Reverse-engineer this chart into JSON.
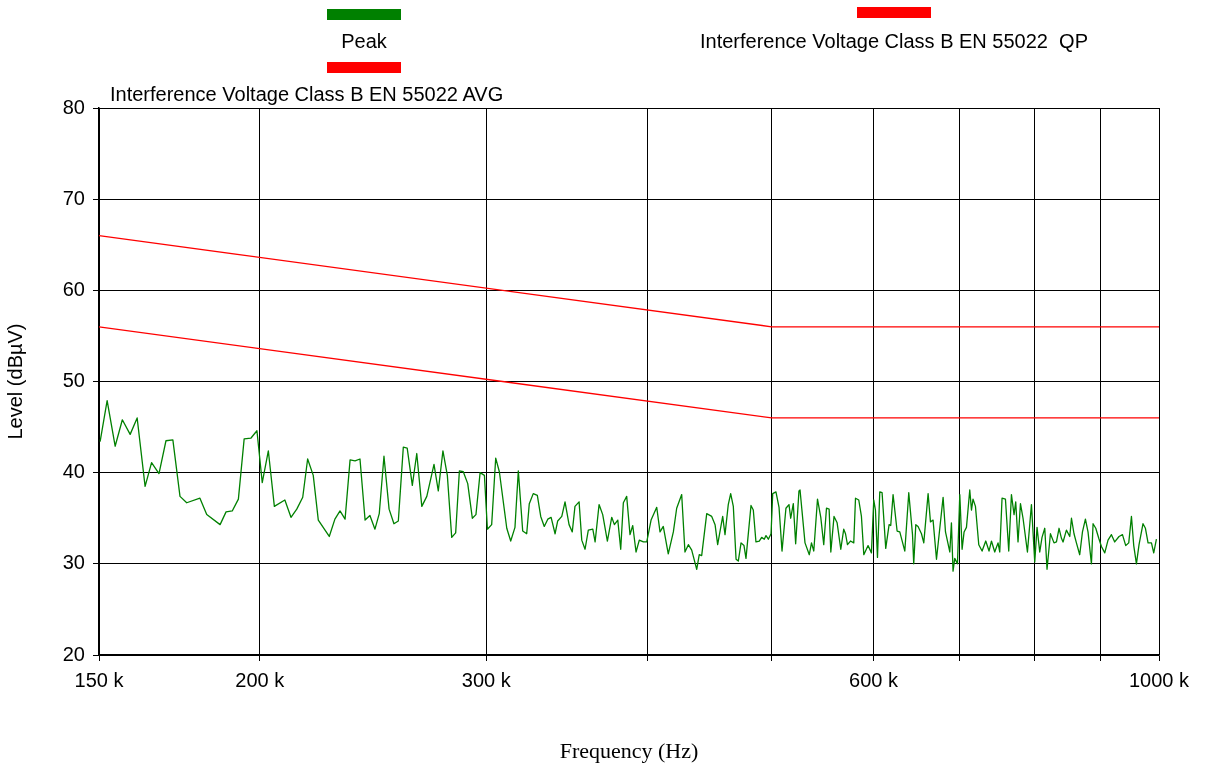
{
  "chart_data": {
    "type": "line",
    "xlabel": "Frequency (Hz)",
    "ylabel": "Level (dBµV)",
    "log": "x",
    "grid": true,
    "legend": "top",
    "marker": "none",
    "line_style": "solid",
    "xlim": [
      150000,
      1000000
    ],
    "ylim": [
      20,
      80
    ],
    "xticks": [
      {
        "value": 150000,
        "label": "150 k"
      },
      {
        "value": 200000,
        "label": "200 k"
      },
      {
        "value": 300000,
        "label": "300 k"
      },
      {
        "value": 400000,
        "label": null
      },
      {
        "value": 500000,
        "label": null
      },
      {
        "value": 600000,
        "label": "600 k"
      },
      {
        "value": 700000,
        "label": null
      },
      {
        "value": 800000,
        "label": null
      },
      {
        "value": 900000,
        "label": null
      },
      {
        "value": 1000000,
        "label": "1000 k"
      }
    ],
    "yticks": [
      20,
      30,
      40,
      50,
      60,
      70,
      80
    ],
    "series": [
      {
        "name": "Peak",
        "color": "#008000",
        "x": [
          150300,
          152200,
          154400,
          156400,
          158600,
          160600,
          162900,
          164800,
          167000,
          169100,
          171200,
          173400,
          175500,
          179700,
          181900,
          186300,
          188300,
          190400,
          192500,
          194500,
          196900,
          199000,
          200900,
          203100,
          205300,
          209200,
          211500,
          213700,
          216000,
          217900,
          220100,
          222100,
          226500,
          228800,
          230900,
          233000,
          235100,
          237200,
          239300,
          241500,
          243600,
          245800,
          247700,
          249800,
          252100,
          254300,
          256300,
          258600,
          260400,
          262800,
          264900,
          267300,
          269700,
          273200,
          275300,
          277600,
          279800,
          282000,
          284000,
          285900,
          287900,
          290200,
          292600,
          294500,
          296700,
          299000,
          300600,
          302900,
          305100,
          307100,
          311200,
          313400,
          315800,
          317700,
          320200,
          322500,
          324000,
          326300,
          328700,
          330700,
          332800,
          334900,
          336900,
          339300,
          340900,
          343400,
          345400,
          347900,
          349900,
          351600,
          354200,
          355900,
          358000,
          360100,
          363000,
          364500,
          367100,
          369500,
          372600,
          375500,
          377300,
          379600,
          381600,
          383400,
          385700,
          388000,
          389900,
          392200,
          394500,
          397400,
          399800,
          402900,
          407000,
          409400,
          411800,
          415500,
          419300,
          421800,
          425600,
          428100,
          430700,
          433300,
          437200,
          439200,
          441100,
          445100,
          449100,
          451800,
          453900,
          458000,
          459900,
          462600,
          464600,
          466800,
          469100,
          471000,
          473300,
          475800,
          477500,
          481800,
          483800,
          486100,
          489000,
          491100,
          493400,
          494900,
          497000,
          499400,
          500900,
          503800,
          506600,
          509300,
          512900,
          515700,
          517300,
          519700,
          521900,
          525000,
          526000,
          530700,
          534800,
          536900,
          539100,
          542700,
          545900,
          548800,
          551500,
          554100,
          555800,
          559000,
          562100,
          565800,
          568800,
          570600,
          572600,
          575700,
          579100,
          580900,
          584300,
          587100,
          589600,
          594100,
          597700,
          600200,
          602000,
          604200,
          606700,
          609200,
          613200,
          616900,
          618700,
          621300,
          625800,
          628800,
          634500,
          639000,
          643300,
          644700,
          647100,
          649700,
          653700,
          656400,
          661500,
          664300,
          667400,
          671500,
          679500,
          682400,
          687700,
          689700,
          691700,
          693800,
          697200,
          700100,
          703000,
          705500,
          708500,
          712700,
          714900,
          716900,
          720000,
          724300,
          728600,
          733400,
          737700,
          740900,
          745300,
          749700,
          752000,
          755100,
          759700,
          764200,
          767900,
          771500,
          773800,
          777000,
          780400,
          784000,
          790200,
          795900,
          800600,
          803900,
          807800,
          811100,
          815100,
          818400,
          823400,
          828700,
          832300,
          836200,
          839800,
          842200,
          847300,
          852400,
          855000,
          858900,
          862600,
          867700,
          872000,
          876600,
          880700,
          886100,
          888700,
          893000,
          897800,
          902100,
          907500,
          912800,
          918400,
          923800,
          931000,
          936700,
          942200,
          947300,
          951900,
          955800,
          960400,
          964900,
          971800,
          976000,
          980600,
          986600,
          990600,
          995400
        ],
        "values": [
          43.4,
          47.9,
          42.9,
          45.8,
          44.2,
          46.0,
          38.5,
          41.1,
          39.9,
          43.5,
          43.6,
          37.4,
          36.7,
          37.2,
          35.4,
          34.3,
          35.7,
          35.8,
          37.1,
          43.7,
          43.8,
          44.6,
          38.9,
          42.4,
          36.3,
          37.0,
          35.1,
          36.0,
          37.3,
          41.5,
          39.7,
          34.8,
          33.0,
          34.9,
          35.8,
          34.9,
          41.4,
          41.3,
          41.5,
          34.8,
          35.3,
          33.8,
          35.5,
          41.8,
          36.0,
          34.4,
          34.7,
          42.8,
          42.7,
          38.6,
          42.1,
          36.3,
          37.4,
          40.9,
          38.0,
          42.4,
          39.7,
          32.9,
          33.4,
          40.2,
          40.1,
          38.8,
          35.0,
          35.4,
          40.0,
          39.7,
          33.8,
          34.3,
          41.6,
          40.1,
          33.9,
          32.5,
          34.0,
          40.2,
          33.6,
          33.3,
          36.6,
          37.7,
          37.5,
          35.2,
          34.1,
          34.9,
          35.1,
          33.3,
          34.7,
          35.2,
          36.8,
          34.3,
          33.5,
          36.3,
          36.8,
          32.6,
          31.6,
          33.7,
          33.8,
          32.4,
          36.5,
          35.4,
          32.5,
          35.1,
          34.3,
          34.8,
          31.6,
          36.7,
          37.4,
          33.2,
          34.2,
          31.3,
          32.6,
          32.4,
          32.4,
          34.8,
          36.2,
          33.5,
          34.1,
          31.1,
          33.5,
          36.1,
          37.6,
          31.3,
          32.1,
          31.5,
          29.4,
          31.0,
          30.9,
          35.5,
          35.2,
          34.3,
          32.1,
          35.2,
          33.2,
          36.5,
          37.7,
          36.3,
          30.5,
          30.3,
          32.3,
          32.0,
          30.6,
          36.4,
          35.9,
          32.4,
          32.5,
          32.9,
          32.7,
          33.1,
          32.7,
          33.3,
          37.7,
          37.9,
          36.2,
          31.4,
          36.1,
          36.5,
          35.0,
          36.6,
          32.2,
          38.0,
          38.1,
          32.3,
          31.0,
          32.3,
          31.4,
          37.1,
          35.1,
          32.1,
          36.1,
          36.0,
          31.3,
          35.2,
          34.5,
          31.6,
          33.8,
          33.3,
          32.1,
          32.5,
          32.3,
          37.2,
          37.0,
          35.2,
          31.0,
          32.0,
          31.2,
          37.0,
          35.9,
          30.7,
          37.9,
          37.8,
          31.7,
          34.3,
          34.2,
          37.6,
          33.6,
          33.5,
          31.4,
          37.8,
          33.2,
          30.0,
          34.3,
          34.1,
          33.3,
          32.3,
          37.7,
          34.6,
          34.8,
          30.5,
          37.3,
          33.5,
          31.3,
          34.5,
          29.2,
          30.6,
          30.0,
          37.6,
          31.6,
          33.5,
          34.0,
          38.1,
          35.9,
          37.1,
          36.3,
          32.1,
          31.4,
          32.5,
          31.4,
          32.5,
          31.3,
          32.3,
          31.3,
          37.2,
          37.1,
          31.4,
          37.6,
          35.4,
          36.8,
          32.4,
          36.6,
          35.0,
          31.3,
          36.5,
          30.2,
          34.0,
          31.3,
          32.9,
          33.9,
          29.4,
          33.3,
          32.3,
          32.4,
          33.9,
          32.8,
          32.4,
          33.7,
          33.0,
          35.0,
          33.3,
          32.3,
          31.0,
          33.5,
          34.9,
          33.5,
          30.0,
          34.4,
          33.9,
          32.8,
          31.9,
          31.2,
          32.6,
          33.2,
          32.4,
          33.0,
          33.2,
          32.0,
          32.3,
          35.2,
          32.0,
          30.0,
          32.1,
          34.4,
          33.9,
          32.3,
          32.3,
          31.2,
          32.7
        ]
      },
      {
        "name": "Interference Voltage Class B EN 55022  QP",
        "color": "#ff0000",
        "x": [
          150000,
          500000,
          1000000
        ],
        "values": [
          66,
          56,
          56
        ]
      },
      {
        "name": "Interference Voltage Class B EN 55022 AVG",
        "color": "#ff0000",
        "x": [
          150000,
          500000,
          1000000
        ],
        "values": [
          56,
          46,
          46
        ]
      }
    ]
  }
}
